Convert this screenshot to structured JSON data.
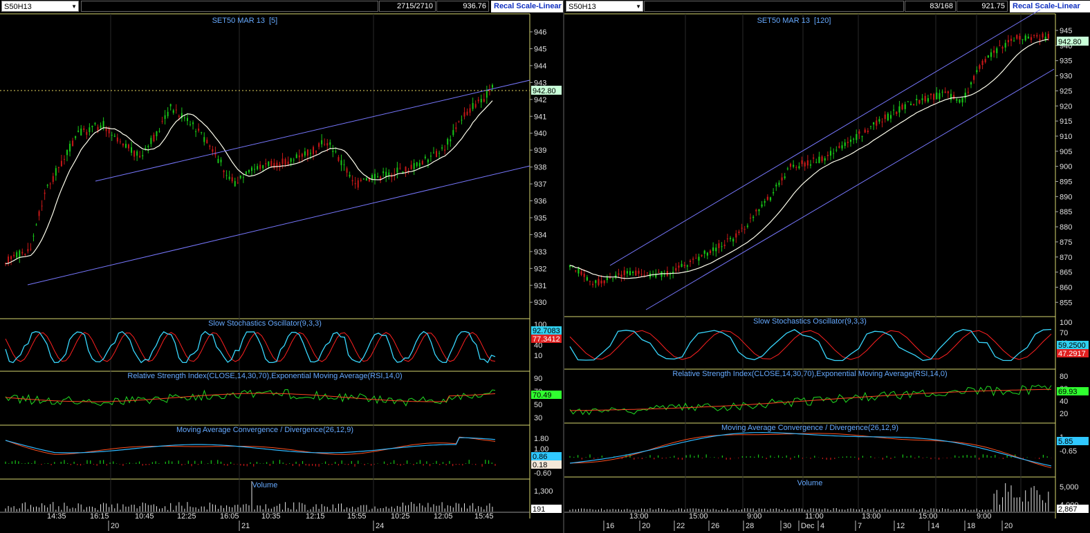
{
  "colors": {
    "up": "#18c818",
    "down": "#c81818",
    "ma": "#ffffee",
    "channel": "#7878ff",
    "stoch_k": "#38d8ff",
    "stoch_d": "#ff2020",
    "rsi": "#22dd22",
    "rsi_ema": "#ff4422",
    "title": "#66aaff",
    "sep": "#d8d870",
    "grid": "#333333"
  },
  "left": {
    "symbol": "S50H13",
    "counter": "2715/2710",
    "price": "936.76",
    "recal": "Recal Scale-Linear",
    "title": "SET50 MAR 13",
    "title_bracket": "[5]",
    "price_axis": [
      "946",
      "945",
      "944",
      "943",
      "942",
      "941",
      "940",
      "939",
      "938",
      "937",
      "936",
      "935",
      "934",
      "933",
      "932",
      "931",
      "930"
    ],
    "last_price": "942.80",
    "stoch_title": "Slow Stochastics Oscillator(9,3,3)",
    "stoch_axis": [
      "100",
      "70",
      "40",
      "10"
    ],
    "stoch_k": "92.7083",
    "stoch_d": "77.3412",
    "rsi_title": "Relative Strength Index(CLOSE,14,30,70),Exponential Moving Average(RSI,14,0)",
    "rsi_axis": [
      "90",
      "70",
      "50",
      "30"
    ],
    "rsi_val": "70.49",
    "macd_title": "Moving Average Convergence / Divergence(26,12,9)",
    "macd_axis": [
      "1.80",
      "1.00",
      "-0.60"
    ],
    "macd_a": "0.86",
    "macd_b": "0.18",
    "vol_title": "Volume",
    "vol_axis": [
      "1,300"
    ],
    "vol_val": "191",
    "time_labels": [
      "14:35",
      "16:15",
      "10:45",
      "12:25",
      "16:05",
      "10:35",
      "12:15",
      "15:55",
      "10:25",
      "12:05",
      "15:45"
    ],
    "date_labels": [
      "20",
      "21",
      "24"
    ]
  },
  "right": {
    "symbol": "S50H13",
    "counter": "83/168",
    "price": "921.75",
    "recal": "Recal Scale-Linear",
    "title": "SET50 MAR 13",
    "title_bracket": "[120]",
    "price_axis": [
      "945",
      "940",
      "935",
      "930",
      "925",
      "920",
      "915",
      "910",
      "905",
      "900",
      "895",
      "890",
      "885",
      "880",
      "875",
      "870",
      "865",
      "860",
      "855"
    ],
    "last_price": "942.80",
    "stoch_title": "Slow Stochastics Oscillator(9,3,3)",
    "stoch_axis": [
      "100",
      "70",
      "40",
      "10"
    ],
    "stoch_k": "59.2500",
    "stoch_d": "47.2917",
    "rsi_title": "Relative Strength Index(CLOSE,14,30,70),Exponential Moving Average(RSI,14,0)",
    "rsi_axis": [
      "80",
      "60",
      "40",
      "20"
    ],
    "rsi_val": "69.93",
    "macd_title": "Moving Average Convergence / Divergence(26,12,9)",
    "macd_axis": [
      "1",
      "-0.65"
    ],
    "macd_a": "5.85",
    "vol_title": "Volume",
    "vol_axis": [
      "5,000",
      "4,000"
    ],
    "vol_val": "2,867",
    "time_labels": [
      "13:00",
      "15:00",
      "9:00",
      "11:00",
      "13:00",
      "15:00",
      "9:00"
    ],
    "date_labels": [
      "16",
      "20",
      "22",
      "26",
      "28",
      "30",
      "Dec",
      "4",
      "7",
      "12",
      "14",
      "18",
      "20"
    ]
  }
}
